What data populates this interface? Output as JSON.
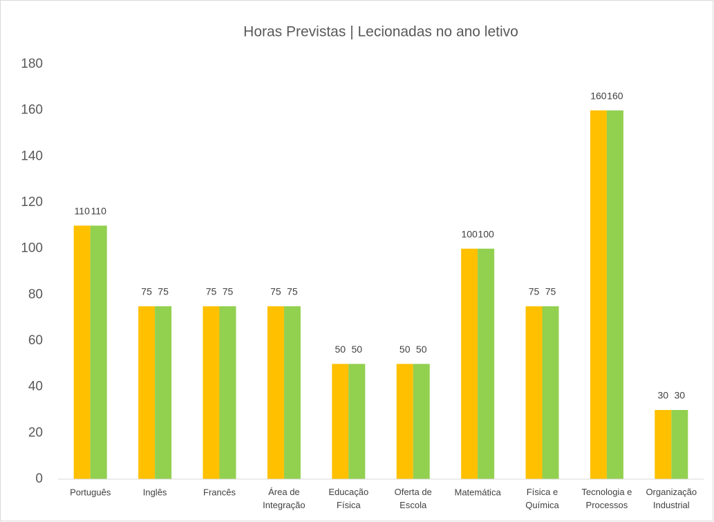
{
  "chart_data": {
    "type": "bar",
    "title": "Horas Previstas | Lecionadas no ano letivo",
    "categories": [
      "Português",
      "Inglês",
      "Francês",
      "Área de Integração",
      "Educação Física",
      "Oferta de Escola",
      "Matemática",
      "Física e Química",
      "Tecnologia e Processos",
      "Organização Industrial"
    ],
    "series": [
      {
        "color": "#ffc000",
        "values": [
          110,
          75,
          75,
          75,
          50,
          50,
          100,
          75,
          160,
          30
        ]
      },
      {
        "color": "#92d050",
        "values": [
          110,
          75,
          75,
          75,
          50,
          50,
          100,
          75,
          160,
          30
        ]
      }
    ],
    "ylim": [
      0,
      180
    ],
    "yticks": [
      0,
      20,
      40,
      60,
      80,
      100,
      120,
      140,
      160,
      180
    ],
    "grid": false
  }
}
